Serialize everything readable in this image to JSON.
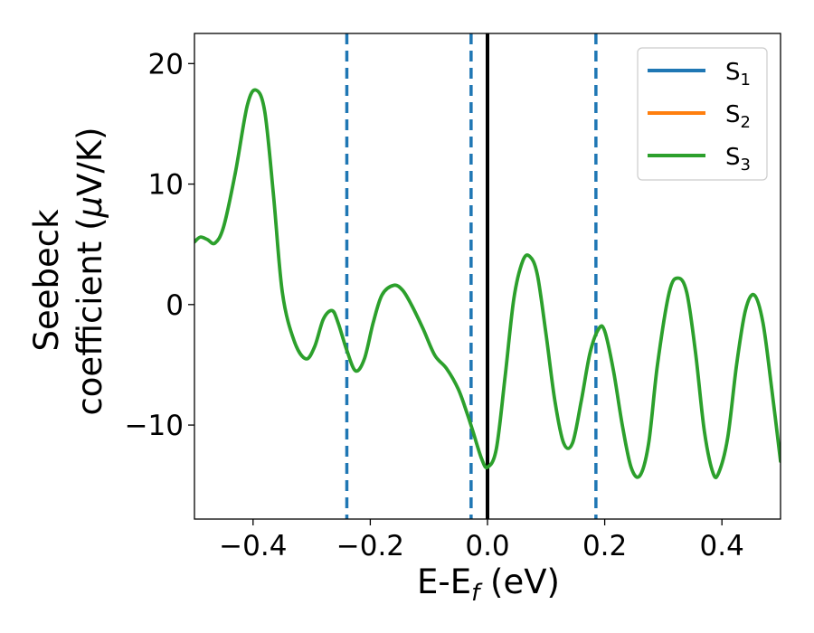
{
  "chart_data": {
    "type": "line",
    "xlabel": "E-E",
    "xlabel_sub": "f",
    "xlabel_unit": " (eV)",
    "ylabel_line1": "Seebeck",
    "ylabel_line2": "coefficient  (",
    "ylabel_mu": "μ",
    "ylabel_unit": "V/K)",
    "xlim": [
      -0.5,
      0.5
    ],
    "ylim": [
      -17.8,
      22.5
    ],
    "xticks": [
      -0.4,
      -0.2,
      0.0,
      0.2,
      0.4
    ],
    "xtick_labels": [
      "−0.4",
      "−0.2",
      "0.0",
      "0.2",
      "0.4"
    ],
    "yticks": [
      -10,
      0,
      10,
      20
    ],
    "ytick_labels": [
      "−10",
      "0",
      "10",
      "20"
    ],
    "grid": false,
    "legend_position": "top-right",
    "vlines": [
      {
        "x": -0.24,
        "style": "dashed",
        "color": "#1f77b4"
      },
      {
        "x": -0.028,
        "style": "dashed",
        "color": "#1f77b4"
      },
      {
        "x": 0.0,
        "style": "solid",
        "color": "#000000"
      },
      {
        "x": 0.185,
        "style": "dashed",
        "color": "#1f77b4"
      }
    ],
    "series": [
      {
        "name_main": "S",
        "name_sub": "1",
        "color": "#1f77b4",
        "x": [],
        "y": []
      },
      {
        "name_main": "S",
        "name_sub": "2",
        "color": "#ff7f0e",
        "x": [],
        "y": []
      },
      {
        "name_main": "S",
        "name_sub": "3",
        "color": "#2ca02c",
        "x": [
          -0.5,
          -0.49,
          -0.478,
          -0.465,
          -0.45,
          -0.43,
          -0.41,
          -0.395,
          -0.38,
          -0.365,
          -0.35,
          -0.33,
          -0.31,
          -0.295,
          -0.28,
          -0.265,
          -0.255,
          -0.24,
          -0.225,
          -0.21,
          -0.195,
          -0.18,
          -0.16,
          -0.145,
          -0.13,
          -0.11,
          -0.09,
          -0.07,
          -0.05,
          -0.035,
          -0.025,
          -0.01,
          0.0,
          0.015,
          0.03,
          0.045,
          0.06,
          0.072,
          0.085,
          0.1,
          0.115,
          0.13,
          0.145,
          0.16,
          0.175,
          0.19,
          0.2,
          0.215,
          0.23,
          0.245,
          0.26,
          0.275,
          0.29,
          0.31,
          0.325,
          0.34,
          0.355,
          0.37,
          0.385,
          0.395,
          0.41,
          0.425,
          0.44,
          0.455,
          0.47,
          0.485,
          0.5
        ],
        "y": [
          5.2,
          5.6,
          5.4,
          5.1,
          6.5,
          11.0,
          16.5,
          17.8,
          16.0,
          9.0,
          1.0,
          -3.0,
          -4.5,
          -3.5,
          -1.2,
          -0.5,
          -1.5,
          -3.8,
          -5.5,
          -4.5,
          -1.5,
          0.8,
          1.6,
          1.2,
          0.0,
          -2.0,
          -4.2,
          -5.3,
          -7.0,
          -9.0,
          -10.5,
          -12.8,
          -13.5,
          -12.0,
          -6.0,
          0.5,
          3.6,
          4.0,
          2.5,
          -2.5,
          -8.0,
          -11.5,
          -11.5,
          -8.0,
          -4.0,
          -2.0,
          -2.2,
          -5.5,
          -10.0,
          -13.5,
          -14.2,
          -11.5,
          -5.0,
          1.0,
          2.2,
          1.0,
          -4.0,
          -10.5,
          -14.0,
          -13.9,
          -11.0,
          -5.0,
          -0.5,
          0.8,
          -1.5,
          -7.0,
          -13.0
        ]
      }
    ]
  }
}
